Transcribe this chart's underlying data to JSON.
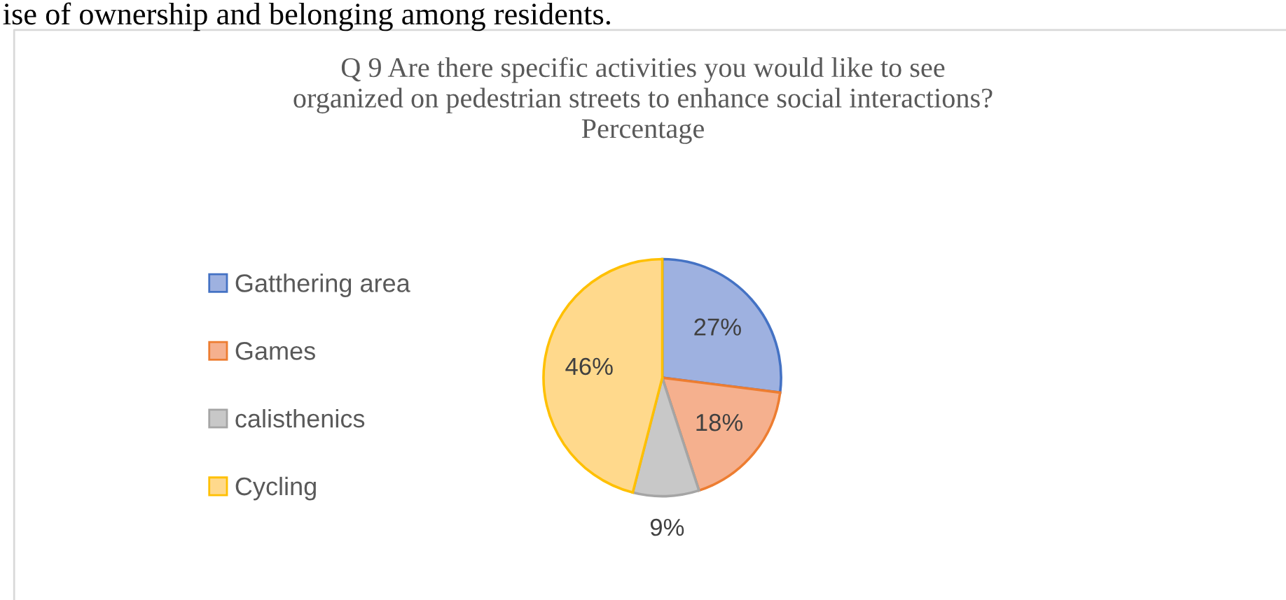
{
  "chart_data": {
    "type": "pie",
    "title": "Q 9 Are there specific activities you would like to see\norganized on pedestrian streets to enhance social interactions?\nPercentage",
    "categories": [
      "Gatthering area",
      "Games",
      "calisthenics",
      "Cycling"
    ],
    "values": [
      27,
      18,
      9,
      46
    ],
    "colors": [
      "#9eb1e0",
      "#f5b08e",
      "#c8c8c8",
      "#ffd98c"
    ],
    "value_labels": [
      "27%",
      "18%",
      "9%",
      "46%"
    ],
    "legend": "left",
    "annotations": [
      "ise of ownership and belonging among residents."
    ]
  }
}
